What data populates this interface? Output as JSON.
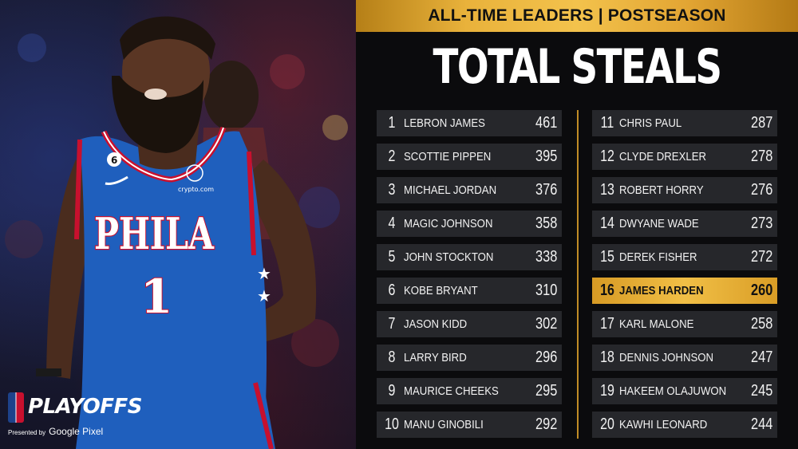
{
  "header": {
    "banner": "ALL-TIME LEADERS | POSTSEASON",
    "title": "TOTAL STEALS"
  },
  "photo": {
    "jersey_text": "PHILA",
    "jersey_number": "1",
    "sponsor": "crypto.com",
    "alt_number": "6"
  },
  "branding": {
    "playoffs": "PLAYOFFS",
    "presented": "Presented by",
    "sponsor": "Google Pixel"
  },
  "leaders_left": [
    {
      "rank": "1",
      "name": "LEBRON JAMES",
      "value": "461"
    },
    {
      "rank": "2",
      "name": "SCOTTIE PIPPEN",
      "value": "395"
    },
    {
      "rank": "3",
      "name": "MICHAEL JORDAN",
      "value": "376"
    },
    {
      "rank": "4",
      "name": "MAGIC JOHNSON",
      "value": "358"
    },
    {
      "rank": "5",
      "name": "JOHN STOCKTON",
      "value": "338"
    },
    {
      "rank": "6",
      "name": "KOBE BRYANT",
      "value": "310"
    },
    {
      "rank": "7",
      "name": "JASON KIDD",
      "value": "302"
    },
    {
      "rank": "8",
      "name": "LARRY BIRD",
      "value": "296"
    },
    {
      "rank": "9",
      "name": "MAURICE CHEEKS",
      "value": "295"
    },
    {
      "rank": "10",
      "name": "MANU GINOBILI",
      "value": "292"
    }
  ],
  "leaders_right": [
    {
      "rank": "11",
      "name": "CHRIS PAUL",
      "value": "287"
    },
    {
      "rank": "12",
      "name": "CLYDE DREXLER",
      "value": "278"
    },
    {
      "rank": "13",
      "name": "ROBERT HORRY",
      "value": "276"
    },
    {
      "rank": "14",
      "name": "DWYANE WADE",
      "value": "273"
    },
    {
      "rank": "15",
      "name": "DEREK FISHER",
      "value": "272"
    },
    {
      "rank": "16",
      "name": "JAMES HARDEN",
      "value": "260",
      "highlight": true
    },
    {
      "rank": "17",
      "name": "KARL MALONE",
      "value": "258"
    },
    {
      "rank": "18",
      "name": "DENNIS JOHNSON",
      "value": "247"
    },
    {
      "rank": "19",
      "name": "HAKEEM OLAJUWON",
      "value": "245"
    },
    {
      "rank": "20",
      "name": "KAWHI LEONARD",
      "value": "244"
    }
  ],
  "colors": {
    "accent_gold": "#f3c24c",
    "row_bg": "#26272b",
    "jersey_blue": "#1f5fbd",
    "jersey_red": "#c8102e"
  }
}
